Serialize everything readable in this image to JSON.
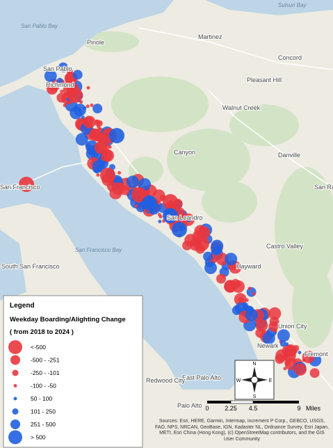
{
  "places": [
    "San Pablo",
    "Richmond",
    "Pinole",
    "Martinez",
    "Concord",
    "Pleasant Hill",
    "Walnut Creek",
    "Canyon",
    "Danville",
    "San Ramon",
    "San Francisco",
    "San Leandro",
    "Castro Valley",
    "Hayward",
    "Union City",
    "Newark",
    "Fremont",
    "East Palo Alto",
    "Redwood City",
    "Palo Alto",
    "South San Francisco"
  ],
  "water_labels": [
    "San Pablo Bay",
    "Suisun Bay",
    "San Francisco Bay"
  ],
  "legend": {
    "title": "Legend",
    "subtitle": "Weekday Boarding/Alighting Change",
    "period": "( from 2018 to 2024 )",
    "items": [
      {
        "label": "<-500",
        "color": "#e8373e"
      },
      {
        "label": "-500 - -251",
        "color": "#e8373e"
      },
      {
        "label": "-250 - -101",
        "color": "#e8373e"
      },
      {
        "label": "-100 - -50",
        "color": "#e8373e"
      },
      {
        "label": "50 - 100",
        "color": "#1f5fe0"
      },
      {
        "label": "101 - 250",
        "color": "#1f5fe0"
      },
      {
        "label": "251 - 500",
        "color": "#1f5fe0"
      },
      {
        "label": "> 500",
        "color": "#1f5fe0"
      }
    ]
  },
  "compass": {
    "n": "N",
    "s": "S",
    "e": "E",
    "w": "W"
  },
  "scale": {
    "ticks": [
      "0",
      "2.25",
      "4.5",
      "9"
    ],
    "unit": "Miles"
  },
  "attribution": "Sources: Esri, HERE, Garmin, Intermap, increment P Corp., GEBCO, USGS, FAO, NPS, NRCAN, GeoBase, IGN, Kadaster NL, Ordnance Survey, Esri Japan, METI, Esri China (Hong Kong), (c) OpenStreetMap contributors, and the GIS User Community"
}
